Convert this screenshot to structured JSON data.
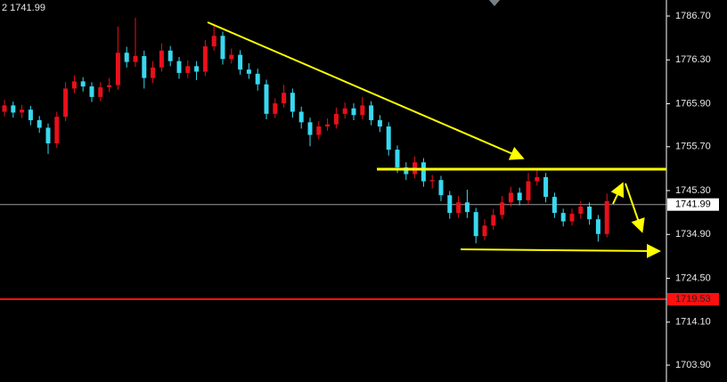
{
  "chart_data": {
    "type": "candlestick",
    "header": "2 1741.99",
    "up_color": "#e8101a",
    "down_color": "#38d8f0",
    "ylim": [
      1699.9,
      1790.5
    ],
    "yticks": [
      {
        "value": 1786.7,
        "label": "1786.70"
      },
      {
        "value": 1776.3,
        "label": "1776.30"
      },
      {
        "value": 1765.9,
        "label": "1765.90"
      },
      {
        "value": 1755.7,
        "label": "1755.70"
      },
      {
        "value": 1745.3,
        "label": "1745.30"
      },
      {
        "value": 1734.9,
        "label": "1734.90"
      },
      {
        "value": 1724.5,
        "label": "1724.50"
      },
      {
        "value": 1714.1,
        "label": "1714.10"
      },
      {
        "value": 1703.9,
        "label": "1703.90"
      }
    ],
    "last_price": 1741.99,
    "last_price_color": "#9a9a9a",
    "alert_level": 1719.53,
    "alert_color": "#ff1010",
    "candles": [
      [
        1764.0,
        1766.8,
        1762.9,
        1765.5
      ],
      [
        1765.5,
        1766.4,
        1762.6,
        1763.8
      ],
      [
        1763.8,
        1765.6,
        1762.5,
        1764.5
      ],
      [
        1764.5,
        1765.4,
        1760.8,
        1762.0
      ],
      [
        1762.0,
        1763.0,
        1759.0,
        1760.2
      ],
      [
        1760.2,
        1761.2,
        1754.0,
        1756.5
      ],
      [
        1756.5,
        1764.0,
        1755.4,
        1762.8
      ],
      [
        1762.8,
        1771.0,
        1761.8,
        1769.5
      ],
      [
        1769.5,
        1772.6,
        1768.4,
        1771.2
      ],
      [
        1771.2,
        1772.2,
        1768.8,
        1770.0
      ],
      [
        1770.0,
        1771.0,
        1766.3,
        1767.5
      ],
      [
        1767.5,
        1771.0,
        1766.5,
        1769.8
      ],
      [
        1769.8,
        1772.0,
        1768.7,
        1770.3
      ],
      [
        1770.3,
        1784.2,
        1769.2,
        1778.0
      ],
      [
        1778.0,
        1779.4,
        1774.5,
        1775.8
      ],
      [
        1775.8,
        1786.3,
        1774.6,
        1777.2
      ],
      [
        1777.2,
        1778.5,
        1769.5,
        1772.0
      ],
      [
        1772.0,
        1776.0,
        1770.8,
        1774.5
      ],
      [
        1774.5,
        1780.2,
        1773.5,
        1778.5
      ],
      [
        1778.5,
        1779.6,
        1774.8,
        1776.0
      ],
      [
        1776.0,
        1777.0,
        1771.8,
        1773.2
      ],
      [
        1773.2,
        1776.2,
        1772.0,
        1774.8
      ],
      [
        1774.8,
        1776.0,
        1771.5,
        1773.5
      ],
      [
        1773.5,
        1781.0,
        1772.5,
        1779.5
      ],
      [
        1779.5,
        1784.6,
        1778.5,
        1782.0
      ],
      [
        1782.0,
        1783.0,
        1775.2,
        1776.5
      ],
      [
        1776.5,
        1779.0,
        1775.4,
        1777.5
      ],
      [
        1777.5,
        1778.6,
        1772.8,
        1774.0
      ],
      [
        1774.0,
        1775.5,
        1771.8,
        1773.0
      ],
      [
        1773.0,
        1774.2,
        1769.0,
        1770.5
      ],
      [
        1770.5,
        1771.6,
        1762.2,
        1763.5
      ],
      [
        1763.5,
        1767.2,
        1762.5,
        1766.0
      ],
      [
        1766.0,
        1770.4,
        1765.0,
        1768.5
      ],
      [
        1768.5,
        1769.5,
        1762.6,
        1764.0
      ],
      [
        1764.0,
        1765.2,
        1760.0,
        1761.5
      ],
      [
        1761.5,
        1762.6,
        1755.8,
        1758.5
      ],
      [
        1758.5,
        1761.8,
        1757.4,
        1760.5
      ],
      [
        1760.5,
        1762.4,
        1759.5,
        1761.0
      ],
      [
        1761.0,
        1765.0,
        1760.0,
        1763.5
      ],
      [
        1763.5,
        1766.2,
        1762.4,
        1764.8
      ],
      [
        1764.8,
        1766.0,
        1762.0,
        1763.2
      ],
      [
        1763.2,
        1767.5,
        1762.2,
        1765.5
      ],
      [
        1765.5,
        1766.5,
        1760.8,
        1762.0
      ],
      [
        1762.0,
        1763.2,
        1759.2,
        1760.5
      ],
      [
        1760.5,
        1761.5,
        1753.6,
        1755.0
      ],
      [
        1755.0,
        1756.0,
        1749.5,
        1750.8
      ],
      [
        1750.8,
        1752.0,
        1747.8,
        1749.2
      ],
      [
        1749.2,
        1753.4,
        1748.2,
        1752.0
      ],
      [
        1752.0,
        1753.0,
        1746.2,
        1747.5
      ],
      [
        1747.5,
        1749.0,
        1745.8,
        1747.8
      ],
      [
        1747.8,
        1748.8,
        1742.8,
        1744.2
      ],
      [
        1744.2,
        1745.2,
        1738.6,
        1740.0
      ],
      [
        1740.0,
        1744.0,
        1738.8,
        1742.5
      ],
      [
        1742.5,
        1745.5,
        1738.8,
        1740.2
      ],
      [
        1740.2,
        1741.2,
        1732.8,
        1734.5
      ],
      [
        1734.5,
        1738.5,
        1733.5,
        1737.0
      ],
      [
        1737.0,
        1741.0,
        1736.0,
        1739.5
      ],
      [
        1739.5,
        1744.0,
        1738.5,
        1742.5
      ],
      [
        1742.5,
        1746.2,
        1741.5,
        1744.8
      ],
      [
        1744.8,
        1746.0,
        1741.8,
        1743.0
      ],
      [
        1743.0,
        1749.5,
        1742.0,
        1747.5
      ],
      [
        1747.5,
        1750.4,
        1746.5,
        1748.5
      ],
      [
        1748.5,
        1749.5,
        1742.5,
        1743.8
      ],
      [
        1743.8,
        1744.8,
        1738.8,
        1740.0
      ],
      [
        1740.0,
        1741.0,
        1736.8,
        1738.0
      ],
      [
        1738.0,
        1741.0,
        1737.0,
        1739.8
      ],
      [
        1739.8,
        1742.8,
        1738.6,
        1741.5
      ],
      [
        1741.5,
        1742.5,
        1737.2,
        1738.5
      ],
      [
        1738.5,
        1739.5,
        1733.2,
        1735.0
      ],
      [
        1735.0,
        1744.6,
        1734.2,
        1742.8
      ]
    ]
  }
}
